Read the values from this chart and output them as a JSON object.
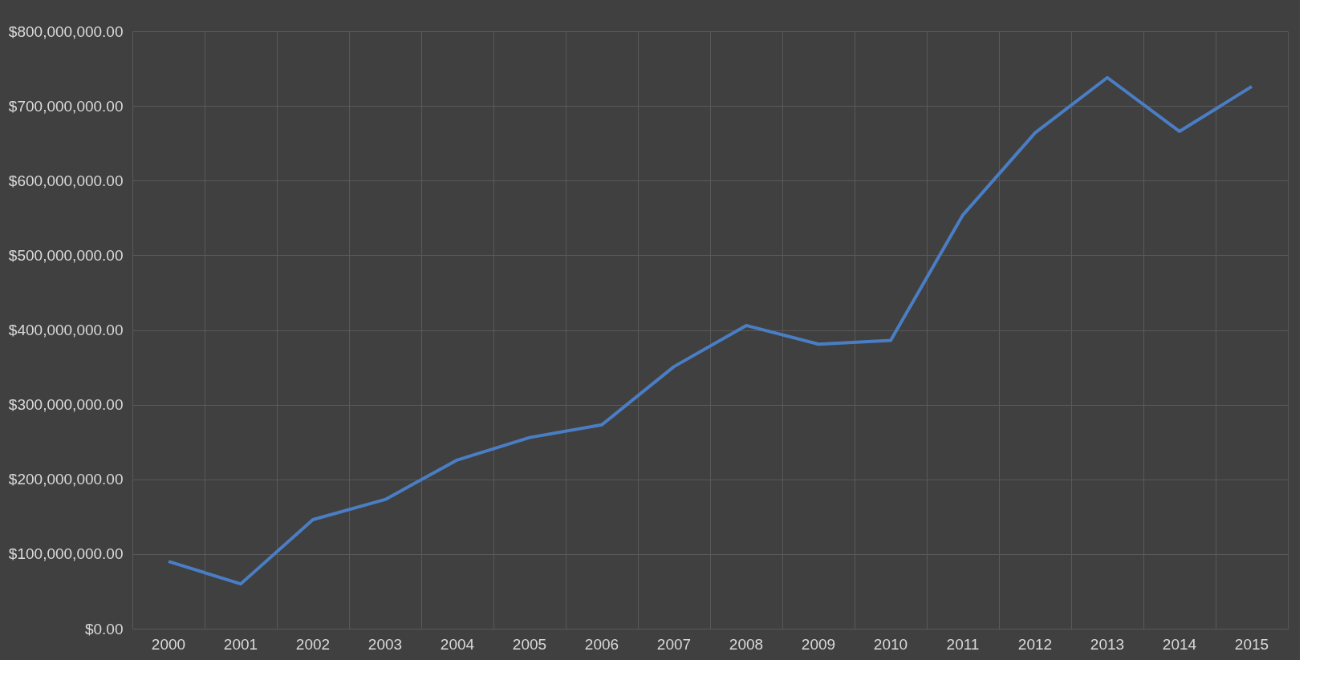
{
  "chart_data": {
    "type": "line",
    "categories": [
      "2000",
      "2001",
      "2002",
      "2003",
      "2004",
      "2005",
      "2006",
      "2007",
      "2008",
      "2009",
      "2010",
      "2011",
      "2012",
      "2013",
      "2014",
      "2015"
    ],
    "series": [
      {
        "color": "#4a7ec4",
        "values": [
          90000000,
          60000000,
          146000000,
          173000000,
          226000000,
          256000000,
          273000000,
          351000000,
          406000000,
          381000000,
          386000000,
          554000000,
          664000000,
          738000000,
          666000000,
          726000000
        ]
      }
    ],
    "ylim": [
      0,
      800000000
    ],
    "yticks": [
      {
        "value": 0,
        "label": "$0.00"
      },
      {
        "value": 100000000,
        "label": "$100,000,000.00"
      },
      {
        "value": 200000000,
        "label": "$200,000,000.00"
      },
      {
        "value": 300000000,
        "label": "$300,000,000.00"
      },
      {
        "value": 400000000,
        "label": "$400,000,000.00"
      },
      {
        "value": 500000000,
        "label": "$500,000,000.00"
      },
      {
        "value": 600000000,
        "label": "$600,000,000.00"
      },
      {
        "value": 700000000,
        "label": "$700,000,000.00"
      },
      {
        "value": 800000000,
        "label": "$800,000,000.00"
      }
    ],
    "grid": true,
    "marker": "none",
    "line_style": "solid"
  }
}
